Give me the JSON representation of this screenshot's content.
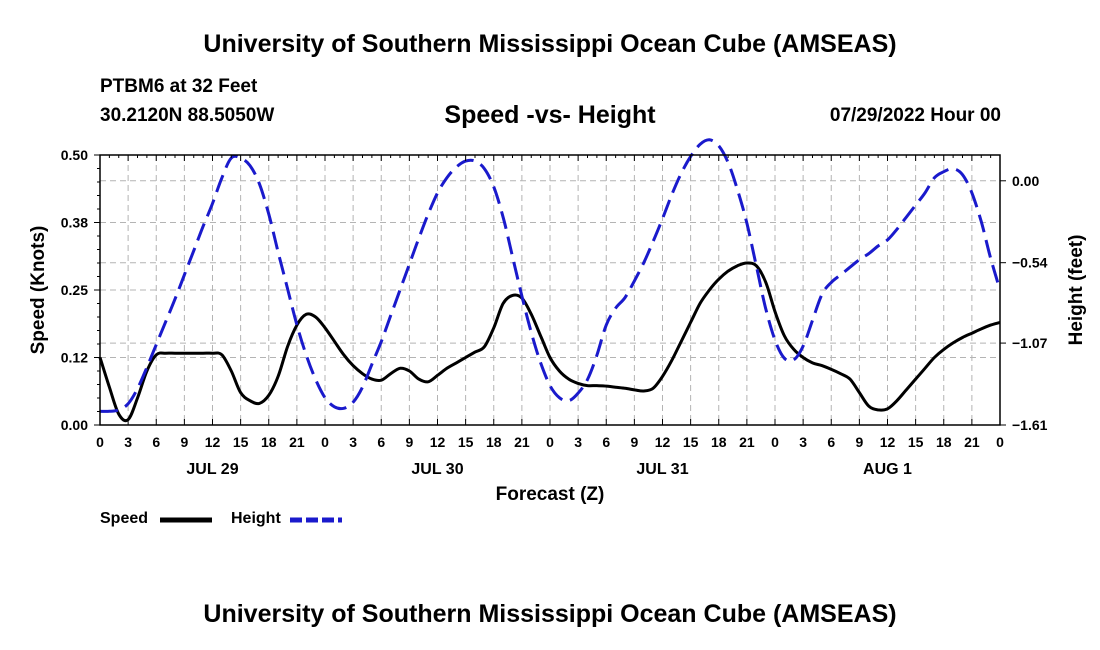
{
  "header": {
    "title": "University of Southern Mississippi Ocean Cube (AMSEAS)",
    "station": "PTBM6 at 32 Feet",
    "coordinates": "30.2120N  88.5050W",
    "subtitle": "Speed -vs- Height",
    "date": "07/29/2022 Hour 00"
  },
  "footer": {
    "title": "University of Southern Mississippi Ocean Cube (AMSEAS)"
  },
  "legend": {
    "speed_label": "Speed",
    "height_label": "Height"
  },
  "colors": {
    "speed": "#000000",
    "height": "#1a1acc",
    "grid": "#b4b4b4"
  },
  "chart_data": {
    "type": "line",
    "title": "Speed -vs- Height",
    "xlabel": "Forecast (Z)",
    "ylabel": "Speed (Knots)",
    "y2label": "Height (feet)",
    "xlim": [
      0,
      96
    ],
    "ylim": [
      0,
      0.5
    ],
    "y2lim": [
      -1.61,
      0.17
    ],
    "grid": true,
    "legend_position": "bottom-left",
    "x_tick_labels": [
      "0",
      "3",
      "6",
      "9",
      "12",
      "15",
      "18",
      "21",
      "0",
      "3",
      "6",
      "9",
      "12",
      "15",
      "18",
      "21",
      "0",
      "3",
      "6",
      "9",
      "12",
      "15",
      "18",
      "21",
      "0",
      "3",
      "6",
      "9",
      "12",
      "15",
      "18",
      "21",
      "0"
    ],
    "date_labels": [
      {
        "label": "JUL 29",
        "hour": 12
      },
      {
        "label": "JUL 30",
        "hour": 36
      },
      {
        "label": "JUL 31",
        "hour": 60
      },
      {
        "label": "AUG 1",
        "hour": 84
      }
    ],
    "y_ticks": [
      {
        "value": 0.0,
        "label": "0.00"
      },
      {
        "value": 0.125,
        "label": "0.12"
      },
      {
        "value": 0.25,
        "label": "0.25"
      },
      {
        "value": 0.375,
        "label": "0.38"
      },
      {
        "value": 0.5,
        "label": "0.50"
      }
    ],
    "y2_ticks": [
      {
        "value": -1.61,
        "label": "−1.61"
      },
      {
        "value": -1.07,
        "label": "−1.07"
      },
      {
        "value": -0.54,
        "label": "−0.54"
      },
      {
        "value": 0.0,
        "label": "0.00"
      }
    ],
    "series": [
      {
        "name": "Speed",
        "axis": "left",
        "style": "solid",
        "x": [
          0,
          1,
          2,
          3,
          4,
          5,
          6,
          7,
          8,
          9,
          10,
          11,
          12,
          13,
          14,
          15,
          16,
          17,
          18,
          19,
          20,
          21,
          22,
          23,
          24,
          25,
          26,
          27,
          28,
          29,
          30,
          31,
          32,
          33,
          34,
          35,
          36,
          37,
          38,
          39,
          40,
          41,
          42,
          43,
          44,
          45,
          46,
          47,
          48,
          49,
          50,
          51,
          52,
          53,
          54,
          55,
          56,
          57,
          58,
          59,
          60,
          61,
          62,
          63,
          64,
          65,
          66,
          67,
          68,
          69,
          70,
          71,
          72,
          73,
          74,
          75,
          76,
          77,
          78,
          79,
          80,
          81,
          82,
          83,
          84,
          85,
          86,
          87,
          88,
          89,
          90,
          91,
          92,
          93,
          94,
          95,
          96
        ],
        "values": [
          0.125,
          0.07,
          0.02,
          0.01,
          0.05,
          0.1,
          0.13,
          0.133,
          0.133,
          0.133,
          0.133,
          0.133,
          0.133,
          0.13,
          0.1,
          0.06,
          0.045,
          0.04,
          0.055,
          0.09,
          0.145,
          0.185,
          0.205,
          0.2,
          0.18,
          0.155,
          0.13,
          0.11,
          0.095,
          0.085,
          0.083,
          0.095,
          0.105,
          0.1,
          0.085,
          0.08,
          0.092,
          0.105,
          0.115,
          0.125,
          0.135,
          0.145,
          0.18,
          0.225,
          0.24,
          0.235,
          0.205,
          0.165,
          0.125,
          0.1,
          0.085,
          0.077,
          0.073,
          0.073,
          0.072,
          0.07,
          0.068,
          0.065,
          0.063,
          0.068,
          0.09,
          0.12,
          0.155,
          0.19,
          0.225,
          0.25,
          0.27,
          0.285,
          0.295,
          0.3,
          0.295,
          0.265,
          0.21,
          0.165,
          0.14,
          0.125,
          0.115,
          0.11,
          0.103,
          0.095,
          0.085,
          0.06,
          0.035,
          0.028,
          0.03,
          0.045,
          0.065,
          0.085,
          0.105,
          0.125,
          0.14,
          0.152,
          0.162,
          0.17,
          0.178,
          0.185,
          0.19
        ]
      },
      {
        "name": "Height",
        "axis": "right",
        "style": "dashed",
        "x": [
          0,
          1,
          2,
          3,
          4,
          5,
          6,
          7,
          8,
          9,
          10,
          11,
          12,
          13,
          14,
          15,
          16,
          17,
          18,
          19,
          20,
          21,
          22,
          23,
          24,
          25,
          26,
          27,
          28,
          29,
          30,
          31,
          32,
          33,
          34,
          35,
          36,
          37,
          38,
          39,
          40,
          41,
          42,
          43,
          44,
          45,
          46,
          47,
          48,
          49,
          50,
          51,
          52,
          53,
          54,
          55,
          56,
          57,
          58,
          59,
          60,
          61,
          62,
          63,
          64,
          65,
          66,
          67,
          68,
          69,
          70,
          71,
          72,
          73,
          74,
          75,
          76,
          77,
          78,
          79,
          80,
          81,
          82,
          83,
          84,
          85,
          86,
          87,
          88,
          89,
          90,
          91,
          92,
          93,
          94,
          95,
          96
        ],
        "values": [
          -1.52,
          -1.52,
          -1.51,
          -1.47,
          -1.37,
          -1.23,
          -1.08,
          -0.93,
          -0.78,
          -0.62,
          -0.46,
          -0.3,
          -0.15,
          0.02,
          0.15,
          0.15,
          0.1,
          -0.02,
          -0.22,
          -0.47,
          -0.71,
          -0.95,
          -1.15,
          -1.31,
          -1.43,
          -1.49,
          -1.5,
          -1.46,
          -1.36,
          -1.21,
          -1.06,
          -0.89,
          -0.72,
          -0.55,
          -0.38,
          -0.22,
          -0.08,
          0.02,
          0.09,
          0.13,
          0.13,
          0.08,
          -0.04,
          -0.24,
          -0.5,
          -0.76,
          -1.0,
          -1.2,
          -1.35,
          -1.43,
          -1.45,
          -1.4,
          -1.31,
          -1.15,
          -0.95,
          -0.84,
          -0.77,
          -0.66,
          -0.54,
          -0.4,
          -0.25,
          -0.09,
          0.05,
          0.16,
          0.24,
          0.27,
          0.23,
          0.12,
          -0.06,
          -0.28,
          -0.56,
          -0.84,
          -1.05,
          -1.17,
          -1.18,
          -1.09,
          -0.92,
          -0.75,
          -0.67,
          -0.62,
          -0.57,
          -0.52,
          -0.48,
          -0.43,
          -0.39,
          -0.32,
          -0.24,
          -0.16,
          -0.08,
          0.02,
          0.06,
          0.08,
          0.04,
          -0.08,
          -0.27,
          -0.51,
          -0.72
        ]
      }
    ]
  }
}
